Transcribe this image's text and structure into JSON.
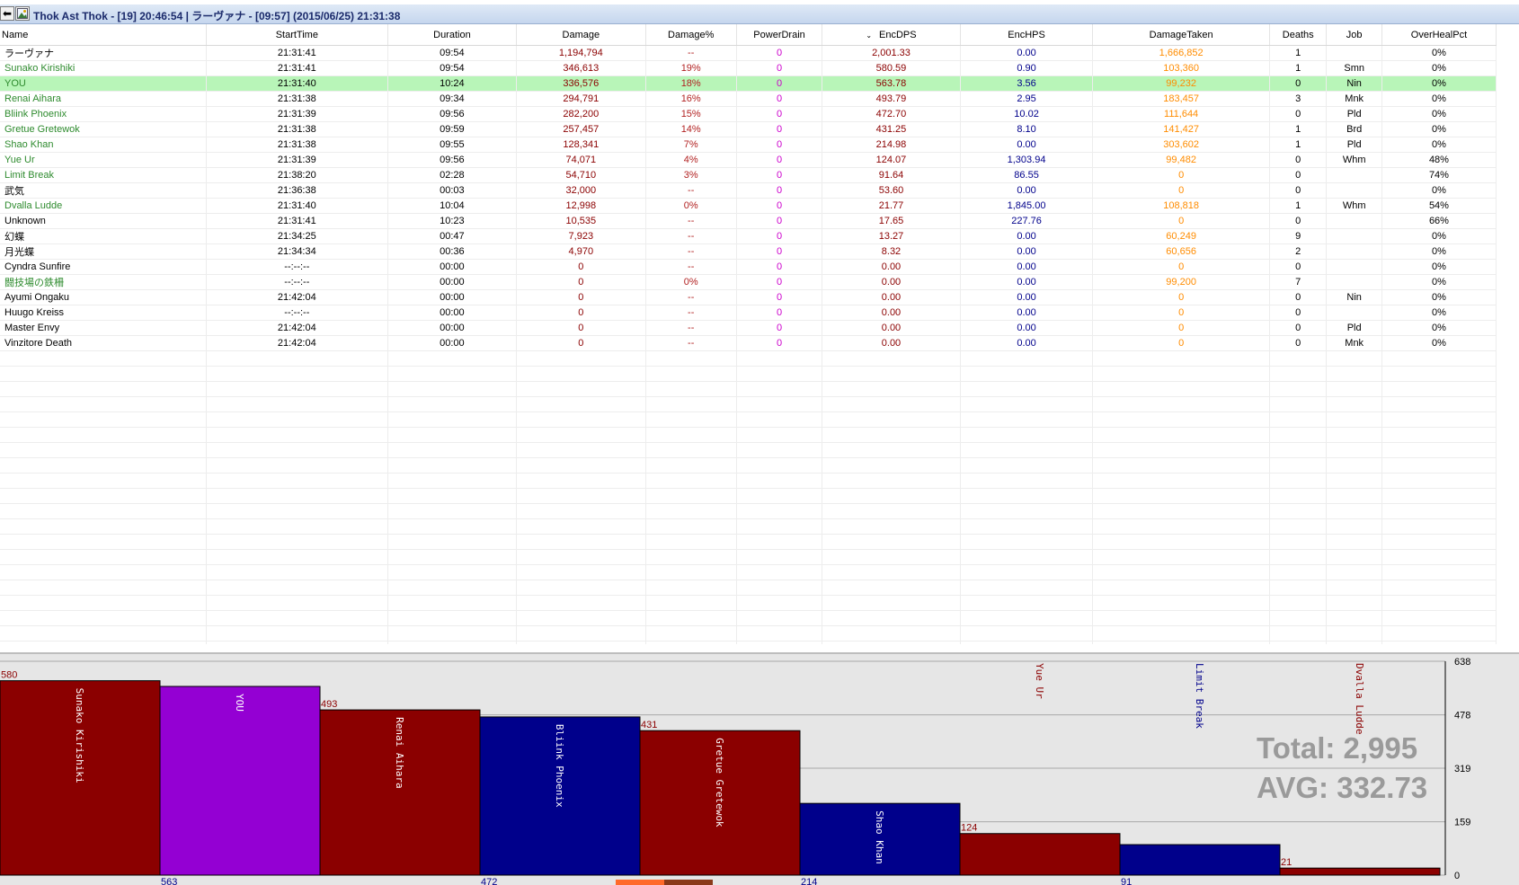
{
  "window": {
    "title": "Thok Ast Thok - [19] 20:46:54 | ラーヴァナ - [09:57] (2015/06/25) 21:31:38",
    "back_icon": "arrow-left-icon",
    "image_icon": "image-icon"
  },
  "table": {
    "columns": [
      "Name",
      "StartTime",
      "Duration",
      "Damage",
      "Damage%",
      "PowerDrain",
      "EncDPS",
      "EncHPS",
      "DamageTaken",
      "Deaths",
      "Job",
      "OverHealPct"
    ],
    "sorted_column": "EncDPS",
    "sort_icon": "chevron-down-icon",
    "rows": [
      {
        "name": "ラーヴァナ",
        "color": "#000000",
        "start": "21:31:41",
        "duration": "09:54",
        "damage": "1,194,794",
        "dmgpct": "--",
        "powerdrain": "0",
        "encdps": "2,001.33",
        "enchps": "0.00",
        "taken": "1,666,852",
        "deaths": "1",
        "job": "",
        "overheal": "0%"
      },
      {
        "name": "Sunako Kirishiki",
        "color": "#2e8b2e",
        "start": "21:31:41",
        "duration": "09:54",
        "damage": "346,613",
        "dmgpct": "19%",
        "powerdrain": "0",
        "encdps": "580.59",
        "enchps": "0.90",
        "taken": "103,360",
        "deaths": "1",
        "job": "Smn",
        "overheal": "0%"
      },
      {
        "name": "YOU",
        "color": "#2e8b2e",
        "start": "21:31:40",
        "duration": "10:24",
        "damage": "336,576",
        "dmgpct": "18%",
        "powerdrain": "0",
        "encdps": "563.78",
        "enchps": "3.56",
        "taken": "99,232",
        "deaths": "0",
        "job": "Nin",
        "overheal": "0%",
        "selected": true
      },
      {
        "name": "Renai Aihara",
        "color": "#2e8b2e",
        "start": "21:31:38",
        "duration": "09:34",
        "damage": "294,791",
        "dmgpct": "16%",
        "powerdrain": "0",
        "encdps": "493.79",
        "enchps": "2.95",
        "taken": "183,457",
        "deaths": "3",
        "job": "Mnk",
        "overheal": "0%"
      },
      {
        "name": "Bliink Phoenix",
        "color": "#2e8b2e",
        "start": "21:31:39",
        "duration": "09:56",
        "damage": "282,200",
        "dmgpct": "15%",
        "powerdrain": "0",
        "encdps": "472.70",
        "enchps": "10.02",
        "taken": "111,644",
        "deaths": "0",
        "job": "Pld",
        "overheal": "0%"
      },
      {
        "name": "Gretue Gretewok",
        "color": "#2e8b2e",
        "start": "21:31:38",
        "duration": "09:59",
        "damage": "257,457",
        "dmgpct": "14%",
        "powerdrain": "0",
        "encdps": "431.25",
        "enchps": "8.10",
        "taken": "141,427",
        "deaths": "1",
        "job": "Brd",
        "overheal": "0%"
      },
      {
        "name": "Shao Khan",
        "color": "#2e8b2e",
        "start": "21:31:38",
        "duration": "09:55",
        "damage": "128,341",
        "dmgpct": "7%",
        "powerdrain": "0",
        "encdps": "214.98",
        "enchps": "0.00",
        "taken": "303,602",
        "deaths": "1",
        "job": "Pld",
        "overheal": "0%"
      },
      {
        "name": "Yue Ur",
        "color": "#2e8b2e",
        "start": "21:31:39",
        "duration": "09:56",
        "damage": "74,071",
        "dmgpct": "4%",
        "powerdrain": "0",
        "encdps": "124.07",
        "enchps": "1,303.94",
        "taken": "99,482",
        "deaths": "0",
        "job": "Whm",
        "overheal": "48%"
      },
      {
        "name": "Limit Break",
        "color": "#2e8b2e",
        "start": "21:38:20",
        "duration": "02:28",
        "damage": "54,710",
        "dmgpct": "3%",
        "powerdrain": "0",
        "encdps": "91.64",
        "enchps": "86.55",
        "taken": "0",
        "deaths": "0",
        "job": "",
        "overheal": "74%"
      },
      {
        "name": "武気",
        "color": "#000000",
        "start": "21:36:38",
        "duration": "00:03",
        "damage": "32,000",
        "dmgpct": "--",
        "powerdrain": "0",
        "encdps": "53.60",
        "enchps": "0.00",
        "taken": "0",
        "deaths": "0",
        "job": "",
        "overheal": "0%"
      },
      {
        "name": "Dvalla Ludde",
        "color": "#2e8b2e",
        "start": "21:31:40",
        "duration": "10:04",
        "damage": "12,998",
        "dmgpct": "0%",
        "powerdrain": "0",
        "encdps": "21.77",
        "enchps": "1,845.00",
        "taken": "108,818",
        "deaths": "1",
        "job": "Whm",
        "overheal": "54%"
      },
      {
        "name": "Unknown",
        "color": "#000000",
        "start": "21:31:41",
        "duration": "10:23",
        "damage": "10,535",
        "dmgpct": "--",
        "powerdrain": "0",
        "encdps": "17.65",
        "enchps": "227.76",
        "taken": "0",
        "deaths": "0",
        "job": "",
        "overheal": "66%"
      },
      {
        "name": "幻蝶",
        "color": "#000000",
        "start": "21:34:25",
        "duration": "00:47",
        "damage": "7,923",
        "dmgpct": "--",
        "powerdrain": "0",
        "encdps": "13.27",
        "enchps": "0.00",
        "taken": "60,249",
        "deaths": "9",
        "job": "",
        "overheal": "0%"
      },
      {
        "name": "月光蝶",
        "color": "#000000",
        "start": "21:34:34",
        "duration": "00:36",
        "damage": "4,970",
        "dmgpct": "--",
        "powerdrain": "0",
        "encdps": "8.32",
        "enchps": "0.00",
        "taken": "60,656",
        "deaths": "2",
        "job": "",
        "overheal": "0%"
      },
      {
        "name": "Cyndra Sunfire",
        "color": "#000000",
        "start": "--:--:--",
        "duration": "00:00",
        "damage": "0",
        "dmgpct": "--",
        "powerdrain": "0",
        "encdps": "0.00",
        "enchps": "0.00",
        "taken": "0",
        "deaths": "0",
        "job": "",
        "overheal": "0%"
      },
      {
        "name": "闘技場の鉄柵",
        "color": "#2e8b2e",
        "start": "--:--:--",
        "duration": "00:00",
        "damage": "0",
        "dmgpct": "0%",
        "powerdrain": "0",
        "encdps": "0.00",
        "enchps": "0.00",
        "taken": "99,200",
        "deaths": "7",
        "job": "",
        "overheal": "0%"
      },
      {
        "name": "Ayumi Ongaku",
        "color": "#000000",
        "start": "21:42:04",
        "duration": "00:00",
        "damage": "0",
        "dmgpct": "--",
        "powerdrain": "0",
        "encdps": "0.00",
        "enchps": "0.00",
        "taken": "0",
        "deaths": "0",
        "job": "Nin",
        "overheal": "0%"
      },
      {
        "name": "Huugo Kreiss",
        "color": "#000000",
        "start": "--:--:--",
        "duration": "00:00",
        "damage": "0",
        "dmgpct": "--",
        "powerdrain": "0",
        "encdps": "0.00",
        "enchps": "0.00",
        "taken": "0",
        "deaths": "0",
        "job": "",
        "overheal": "0%"
      },
      {
        "name": "Master Envy",
        "color": "#000000",
        "start": "21:42:04",
        "duration": "00:00",
        "damage": "0",
        "dmgpct": "--",
        "powerdrain": "0",
        "encdps": "0.00",
        "enchps": "0.00",
        "taken": "0",
        "deaths": "0",
        "job": "Pld",
        "overheal": "0%"
      },
      {
        "name": "Vinzitore Death",
        "color": "#000000",
        "start": "21:42:04",
        "duration": "00:00",
        "damage": "0",
        "dmgpct": "--",
        "powerdrain": "0",
        "encdps": "0.00",
        "enchps": "0.00",
        "taken": "0",
        "deaths": "0",
        "job": "Mnk",
        "overheal": "0%"
      }
    ],
    "colors": {
      "damage": "#8b0000",
      "dmgpct": "#b22222",
      "powerdrain": "#cc00cc",
      "encdps": "#8b0000",
      "enchps": "#00008b",
      "taken": "#ff8c00",
      "selected_row": "#b8f5b8"
    }
  },
  "chart_data": {
    "type": "bar",
    "categories": [
      "Sunako Kirishiki",
      "YOU",
      "Renai Aihara",
      "Bliink Phoenix",
      "Gretue Gretewok",
      "Shao Khan",
      "Yue Ur",
      "Limit Break",
      "Dvalla Ludde"
    ],
    "values": [
      580,
      563,
      493,
      472,
      431,
      214,
      124,
      91,
      21
    ],
    "colors": [
      "#8b0000",
      "#9400d3",
      "#8b0000",
      "#00008b",
      "#8b0000",
      "#00008b",
      "#8b0000",
      "#00008b",
      "#8b0000"
    ],
    "value_label_positions": [
      "top",
      "bottom",
      "top",
      "bottom",
      "top",
      "bottom",
      "top",
      "bottom",
      "top"
    ],
    "ylim": [
      0,
      638
    ],
    "yticks": [
      0,
      159,
      319,
      478,
      638
    ],
    "total_text": "Total: 2,995",
    "avg_text": "AVG: 332.73"
  }
}
